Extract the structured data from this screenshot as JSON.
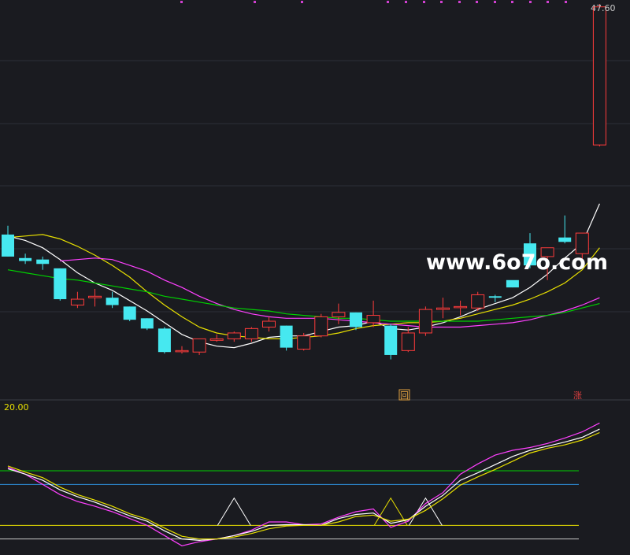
{
  "chart_data": [
    {
      "type": "candlestick",
      "panel": "main",
      "price_label": "47.60",
      "candles": [
        {
          "o": 31.9,
          "h": 32.5,
          "l": 30.4,
          "c": 30.4
        },
        {
          "o": 30.3,
          "h": 30.6,
          "l": 29.9,
          "c": 30.1
        },
        {
          "o": 30.2,
          "h": 30.4,
          "l": 29.5,
          "c": 29.9
        },
        {
          "o": 29.6,
          "h": 29.6,
          "l": 27.4,
          "c": 27.5
        },
        {
          "o": 27.1,
          "h": 28.0,
          "l": 26.9,
          "c": 27.5
        },
        {
          "o": 27.6,
          "h": 28.2,
          "l": 27.0,
          "c": 27.7
        },
        {
          "o": 27.6,
          "h": 28.0,
          "l": 26.9,
          "c": 27.1
        },
        {
          "o": 27.0,
          "h": 27.0,
          "l": 26.0,
          "c": 26.1
        },
        {
          "o": 26.2,
          "h": 26.2,
          "l": 25.4,
          "c": 25.5
        },
        {
          "o": 25.5,
          "h": 25.6,
          "l": 23.8,
          "c": 23.9
        },
        {
          "o": 24.0,
          "h": 24.3,
          "l": 23.8,
          "c": 24.0
        },
        {
          "o": 23.9,
          "h": 24.8,
          "l": 23.7,
          "c": 24.8
        },
        {
          "o": 24.7,
          "h": 25.1,
          "l": 24.6,
          "c": 24.8
        },
        {
          "o": 24.8,
          "h": 25.3,
          "l": 24.6,
          "c": 25.2
        },
        {
          "o": 24.8,
          "h": 25.6,
          "l": 24.6,
          "c": 25.5
        },
        {
          "o": 25.6,
          "h": 26.3,
          "l": 25.3,
          "c": 26.0
        },
        {
          "o": 25.7,
          "h": 25.7,
          "l": 24.0,
          "c": 24.2
        },
        {
          "o": 24.1,
          "h": 25.2,
          "l": 24.0,
          "c": 25.0
        },
        {
          "o": 25.0,
          "h": 26.5,
          "l": 24.9,
          "c": 26.3
        },
        {
          "o": 26.3,
          "h": 27.2,
          "l": 25.8,
          "c": 26.6
        },
        {
          "o": 26.6,
          "h": 26.6,
          "l": 25.4,
          "c": 25.6
        },
        {
          "o": 25.9,
          "h": 27.4,
          "l": 25.6,
          "c": 26.4
        },
        {
          "o": 25.7,
          "h": 25.8,
          "l": 23.4,
          "c": 23.7
        },
        {
          "o": 24.0,
          "h": 25.6,
          "l": 23.9,
          "c": 25.2
        },
        {
          "o": 25.2,
          "h": 27.0,
          "l": 25.0,
          "c": 26.8
        },
        {
          "o": 26.8,
          "h": 27.6,
          "l": 26.2,
          "c": 26.9
        },
        {
          "o": 27.0,
          "h": 27.4,
          "l": 26.4,
          "c": 27.0
        },
        {
          "o": 26.9,
          "h": 28.0,
          "l": 26.7,
          "c": 27.8
        },
        {
          "o": 27.7,
          "h": 27.8,
          "l": 27.3,
          "c": 27.6
        },
        {
          "o": 28.8,
          "h": 28.7,
          "l": 28.3,
          "c": 28.3
        },
        {
          "o": 31.3,
          "h": 32.0,
          "l": 29.6,
          "c": 29.8
        },
        {
          "o": 30.4,
          "h": 30.9,
          "l": 28.8,
          "c": 31.0
        },
        {
          "o": 31.7,
          "h": 33.2,
          "l": 31.3,
          "c": 31.4
        },
        {
          "o": 30.6,
          "h": 32.0,
          "l": 29.9,
          "c": 32.0
        },
        {
          "o": 38.0,
          "h": 47.6,
          "l": 37.9,
          "c": 47.4
        }
      ],
      "moving_averages": [
        {
          "color": "#ffffff",
          "values": [
            31.8,
            31.5,
            31.0,
            30.2,
            29.3,
            28.6,
            28.1,
            27.4,
            26.7,
            25.9,
            25.1,
            24.6,
            24.3,
            24.2,
            24.5,
            24.9,
            25.0,
            25.0,
            25.3,
            25.6,
            25.7,
            26.0,
            25.5,
            25.4,
            25.6,
            25.9,
            26.3,
            26.8,
            27.2,
            27.6,
            28.3,
            29.2,
            30.3,
            31.3,
            34.0
          ]
        },
        {
          "color": "#e8e000",
          "values": [
            31.7,
            31.8,
            31.9,
            31.6,
            31.1,
            30.5,
            29.8,
            29.0,
            28.0,
            27.1,
            26.3,
            25.6,
            25.2,
            25.0,
            24.9,
            24.8,
            24.8,
            24.9,
            25.0,
            25.2,
            25.5,
            25.7,
            25.8,
            25.9,
            25.9,
            26.0,
            26.2,
            26.5,
            26.8,
            27.1,
            27.5,
            28.0,
            28.6,
            29.5,
            31.0
          ]
        },
        {
          "color": "#ff40ff",
          "values": [
            null,
            null,
            null,
            30.1,
            30.2,
            30.3,
            30.2,
            29.8,
            29.4,
            28.8,
            28.3,
            27.7,
            27.2,
            26.8,
            26.5,
            26.3,
            26.2,
            26.2,
            26.2,
            26.1,
            26.0,
            25.9,
            25.8,
            25.7,
            25.6,
            25.6,
            25.6,
            25.7,
            25.8,
            25.9,
            26.1,
            26.4,
            26.7,
            27.1,
            27.6
          ]
        },
        {
          "color": "#00d000",
          "values": [
            29.5,
            29.3,
            29.1,
            28.9,
            28.8,
            28.6,
            28.4,
            28.2,
            28.0,
            27.7,
            27.5,
            27.3,
            27.1,
            26.9,
            26.8,
            26.7,
            26.5,
            26.4,
            26.3,
            26.2,
            26.2,
            26.1,
            26.0,
            26.0,
            26.0,
            26.0,
            26.0,
            26.0,
            26.1,
            26.2,
            26.3,
            26.4,
            26.6,
            26.9,
            27.2
          ]
        }
      ]
    },
    {
      "type": "line",
      "panel": "indicator",
      "top_label": "20.00",
      "reference_lines": [
        {
          "y": 16.0,
          "color": "#00d000"
        },
        {
          "y": 14.0,
          "color": "#2e8fd9"
        },
        {
          "y": 8.0,
          "color": "#e8e000"
        },
        {
          "y": 6.0,
          "color": "#c8c8c8"
        }
      ],
      "signals": [
        {
          "x": 13,
          "peak": 12.0,
          "color": "#ffffff"
        },
        {
          "x": 22,
          "peak": 12.0,
          "color": "#e8e000"
        },
        {
          "x": 24,
          "peak": 12.0,
          "color": "#ffffff"
        }
      ],
      "series": [
        {
          "color": "#ff40ff",
          "values": [
            16.5,
            15.5,
            14.0,
            12.5,
            11.5,
            10.8,
            10.0,
            9.0,
            8.0,
            6.5,
            5.0,
            5.6,
            6.0,
            6.5,
            7.3,
            8.5,
            8.5,
            8.1,
            8.2,
            9.2,
            10.0,
            10.4,
            7.7,
            8.6,
            11.2,
            12.8,
            15.5,
            17.0,
            18.3,
            19.0,
            19.4,
            20.0,
            20.8,
            21.7,
            23.0
          ]
        },
        {
          "color": "#ffffff",
          "values": [
            16.3,
            15.5,
            14.6,
            13.2,
            12.2,
            11.4,
            10.4,
            9.4,
            8.6,
            7.2,
            6.0,
            5.8,
            6.0,
            6.5,
            7.1,
            8.0,
            8.1,
            8.1,
            8.0,
            9.0,
            9.6,
            9.8,
            8.3,
            8.8,
            10.8,
            12.4,
            14.6,
            15.7,
            16.9,
            18.1,
            19.0,
            19.6,
            20.2,
            20.9,
            22.1
          ]
        },
        {
          "color": "#e8e000",
          "values": [
            16.7,
            15.8,
            15.0,
            13.6,
            12.5,
            11.7,
            10.8,
            9.7,
            8.9,
            7.6,
            6.4,
            6.0,
            6.0,
            6.3,
            6.8,
            7.5,
            7.9,
            8.0,
            8.0,
            8.5,
            9.3,
            9.5,
            8.6,
            8.9,
            10.2,
            11.9,
            13.9,
            15.1,
            16.2,
            17.4,
            18.6,
            19.3,
            19.8,
            20.5,
            21.6
          ]
        }
      ]
    }
  ],
  "markers": {
    "bottom_left_glyph": "回",
    "bottom_right_glyph": "涨"
  },
  "watermark": "www.6o7o.com"
}
